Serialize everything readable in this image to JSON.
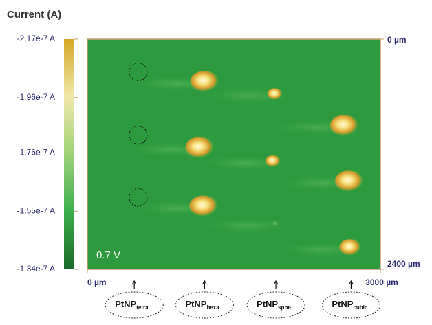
{
  "chart_data": {
    "type": "heatmap",
    "title": "Current (A)",
    "annotation": "0.7 V",
    "background_color": "#2e9a3f",
    "xlim": [
      0,
      3000
    ],
    "ylim": [
      2400,
      0
    ],
    "xticks": [
      {
        "value": 0,
        "label": "0 µm"
      },
      {
        "value": 3000,
        "label": "3000 µm"
      }
    ],
    "yticks": [
      {
        "value": 0,
        "label": "0 µm"
      },
      {
        "value": 2400,
        "label": "2400 µm"
      }
    ],
    "colorbar": {
      "clim": [
        -1.34e-07,
        -2.17e-07
      ],
      "colors": [
        "#1a6a2a",
        "#3cae4a",
        "#9fd27a",
        "#efe9a8",
        "#d6a626"
      ],
      "ticks": [
        {
          "value": -2.17e-07,
          "label": "-2.17e-7 A"
        },
        {
          "value": -1.96e-07,
          "label": "-1.96e-7 A"
        },
        {
          "value": -1.76e-07,
          "label": "-1.76e-7 A"
        },
        {
          "value": -1.55e-07,
          "label": "-1.55e-7 A"
        },
        {
          "value": -1.34e-07,
          "label": "-1.34e-7 A"
        }
      ]
    },
    "spots": {
      "x": [
        1200,
        1150,
        1190,
        1920,
        1900,
        1920,
        2630,
        2680,
        2690
      ],
      "y": [
        440,
        1130,
        1740,
        570,
        1270,
        1920,
        900,
        1480,
        2170
      ],
      "size": [
        3,
        3,
        3,
        1,
        1,
        0,
        3,
        3,
        2
      ]
    },
    "empty_sites": {
      "x": [
        520,
        520,
        520
      ],
      "y": [
        340,
        1000,
        1650
      ]
    },
    "sites": [
      {
        "x": 480,
        "text": "PtNP",
        "sub": "tetra"
      },
      {
        "x": 1200,
        "text": "PtNP",
        "sub": "hexa"
      },
      {
        "x": 1930,
        "text": "PtNP",
        "sub": "sphe"
      },
      {
        "x": 2700,
        "text": "PtNP",
        "sub": "cubic"
      }
    ]
  }
}
